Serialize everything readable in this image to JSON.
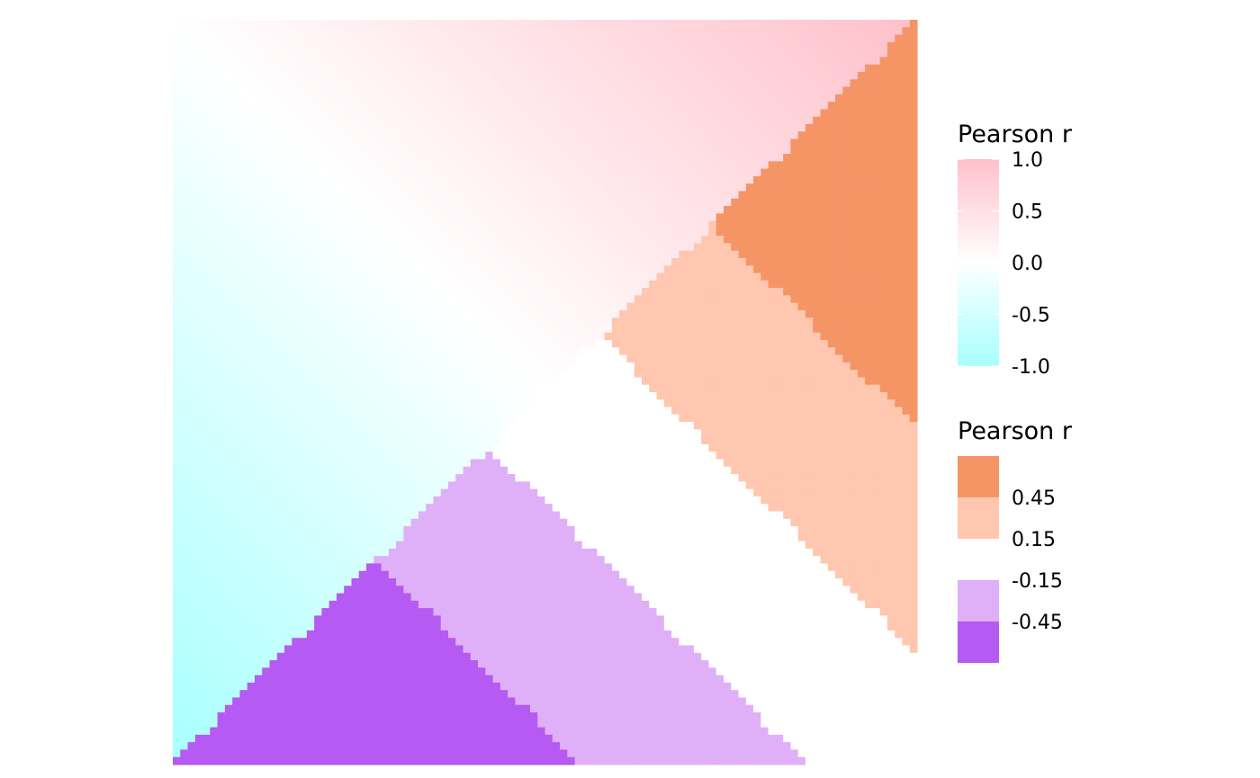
{
  "chart_data": {
    "type": "heatmap",
    "title": "",
    "xlabel": "",
    "ylabel": "",
    "grid": false,
    "legend_position": "right",
    "x_range": [
      -1,
      1
    ],
    "y_range": [
      -1,
      1
    ],
    "continuous_legend": {
      "title": "Pearson r",
      "ticks": [
        "1.0",
        "0.5",
        "0.0",
        "-0.5",
        "-1.0"
      ],
      "tick_values": [
        1.0,
        0.5,
        0.0,
        -0.5,
        -1.0
      ],
      "limits": [
        -1,
        1
      ],
      "colors": {
        "low": "#a8ffff",
        "mid": "#ffffff",
        "high": "#ffc0cb"
      }
    },
    "binned_legend": {
      "title": "Pearson r",
      "breaks": [
        "0.45",
        "0.15",
        "-0.15",
        "-0.45"
      ],
      "bins": [
        {
          "range": [
            0.45,
            1.0
          ],
          "color": "#f59566"
        },
        {
          "range": [
            0.15,
            0.45
          ],
          "color": "#ffc7af"
        },
        {
          "range": [
            -0.15,
            0.15
          ],
          "color": "#ffffff"
        },
        {
          "range": [
            -0.45,
            -0.15
          ],
          "color": "#dfb0f8"
        },
        {
          "range": [
            -1.0,
            -0.45
          ],
          "color": "#b55af2"
        }
      ]
    }
  }
}
